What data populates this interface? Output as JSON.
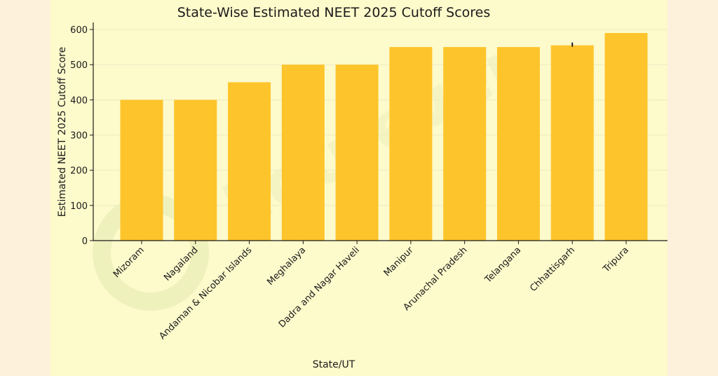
{
  "chart_data": {
    "type": "bar",
    "title": "State-Wise Estimated NEET 2025 Cutoff Scores",
    "xlabel": "State/UT",
    "ylabel": "Estimated NEET 2025 Cutoff Score",
    "categories": [
      "Mizoram",
      "Nagaland",
      "Andaman & Nicobar Islands",
      "Meghalaya",
      "Dadra and Nagar Haveli",
      "Manipur",
      "Arunachal Pradesh",
      "Telangana",
      "Chhattisgarh",
      "Tripura"
    ],
    "values": [
      400,
      400,
      450,
      500,
      500,
      550,
      550,
      550,
      555,
      590
    ],
    "ylim": [
      0,
      620
    ],
    "yticks": [
      0,
      100,
      200,
      300,
      400,
      500,
      600
    ],
    "grid": true,
    "bar_color": "#fec42b",
    "watermark": "Edufever"
  }
}
